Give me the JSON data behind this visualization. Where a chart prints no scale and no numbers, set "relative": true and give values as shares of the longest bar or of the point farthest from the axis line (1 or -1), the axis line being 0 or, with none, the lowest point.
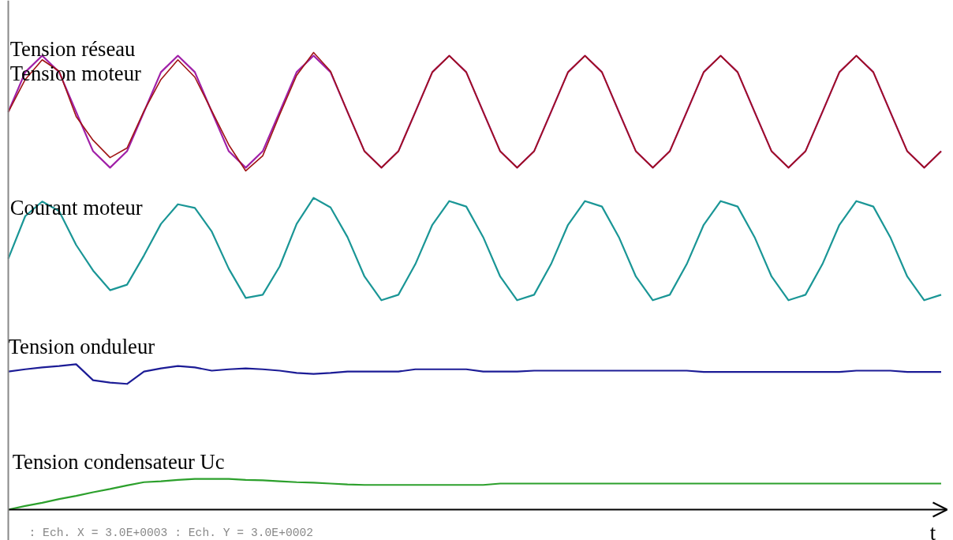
{
  "chart_data": {
    "type": "line",
    "relative": true,
    "xlabel": "t",
    "categories": [
      null,
      null,
      null,
      null,
      null,
      null,
      null,
      null,
      null,
      null,
      null,
      null,
      null,
      null,
      null,
      null,
      null,
      null,
      null,
      null,
      null,
      null,
      null,
      null,
      null,
      null,
      null,
      null,
      null,
      null,
      null,
      null,
      null,
      null,
      null,
      null,
      null,
      null,
      null,
      null,
      null,
      null,
      null,
      null,
      null,
      null,
      null,
      null,
      null,
      null,
      null,
      null,
      null,
      null,
      null,
      null
    ],
    "series": [
      {
        "name": "Tension réseau",
        "color": "#a01414",
        "values": [
          0.87,
          0.941,
          0.984,
          0.959,
          0.86,
          0.808,
          0.77,
          0.791,
          0.872,
          0.941,
          0.984,
          0.946,
          0.872,
          0.798,
          0.741,
          0.774,
          0.864,
          0.95,
          1.0,
          0.959,
          0.87,
          0.784,
          0.748,
          0.784,
          0.87,
          0.957,
          0.993,
          0.957,
          0.87,
          0.784,
          0.748,
          0.784,
          0.87,
          0.957,
          0.993,
          0.957,
          0.87,
          0.784,
          0.748,
          0.784,
          0.87,
          0.957,
          0.993,
          0.957,
          0.87,
          0.784,
          0.748,
          0.784,
          0.87,
          0.957,
          0.993,
          0.957,
          0.87,
          0.784,
          0.748,
          0.784
        ]
      },
      {
        "name": "Tension moteur",
        "color": "#a020a8",
        "values": [
          0.87,
          0.957,
          0.993,
          0.957,
          0.87,
          0.784,
          0.748,
          0.784,
          0.87,
          0.957,
          0.993,
          0.957,
          0.87,
          0.784,
          0.748,
          0.784,
          0.87,
          0.957,
          0.993,
          0.957,
          0.87,
          0.784,
          0.748,
          0.784,
          0.87,
          0.957,
          0.993,
          0.957,
          0.87,
          0.784,
          0.748,
          0.784,
          0.87,
          0.957,
          0.993,
          0.957,
          0.87,
          0.784,
          0.748,
          0.784,
          0.87,
          0.957,
          0.993,
          0.957,
          0.87,
          0.784,
          0.748,
          0.784,
          0.87,
          0.957,
          0.993,
          0.957,
          0.87,
          0.784,
          0.748,
          0.784
        ]
      },
      {
        "name": "Courant moteur",
        "color": "#1a9696",
        "values": [
          0.549,
          0.642,
          0.674,
          0.653,
          0.579,
          0.523,
          0.48,
          0.492,
          0.556,
          0.625,
          0.668,
          0.66,
          0.608,
          0.527,
          0.463,
          0.47,
          0.532,
          0.625,
          0.682,
          0.661,
          0.596,
          0.51,
          0.458,
          0.47,
          0.537,
          0.623,
          0.675,
          0.663,
          0.596,
          0.51,
          0.458,
          0.47,
          0.537,
          0.623,
          0.675,
          0.663,
          0.596,
          0.51,
          0.458,
          0.47,
          0.537,
          0.623,
          0.675,
          0.663,
          0.596,
          0.51,
          0.458,
          0.47,
          0.537,
          0.623,
          0.675,
          0.663,
          0.596,
          0.51,
          0.458,
          0.47
        ]
      },
      {
        "name": "Tension onduleur",
        "color": "#1c1c96",
        "values": [
          0.302,
          0.307,
          0.311,
          0.314,
          0.318,
          0.283,
          0.278,
          0.275,
          0.302,
          0.309,
          0.314,
          0.311,
          0.304,
          0.307,
          0.309,
          0.307,
          0.304,
          0.299,
          0.297,
          0.299,
          0.302,
          0.302,
          0.302,
          0.302,
          0.307,
          0.307,
          0.307,
          0.307,
          0.302,
          0.302,
          0.302,
          0.304,
          0.304,
          0.304,
          0.304,
          0.304,
          0.304,
          0.304,
          0.304,
          0.304,
          0.304,
          0.301,
          0.301,
          0.301,
          0.301,
          0.301,
          0.301,
          0.301,
          0.301,
          0.301,
          0.304,
          0.304,
          0.304,
          0.301,
          0.301,
          0.301
        ]
      },
      {
        "name": "Tension condensateur Uc",
        "color": "#2ca02c",
        "values": [
          0,
          0.008,
          0.015,
          0.023,
          0.03,
          0.038,
          0.045,
          0.053,
          0.06,
          0.062,
          0.065,
          0.067,
          0.067,
          0.067,
          0.065,
          0.064,
          0.062,
          0.06,
          0.059,
          0.057,
          0.055,
          0.054,
          0.054,
          0.054,
          0.054,
          0.054,
          0.054,
          0.054,
          0.054,
          0.057,
          0.057,
          0.057,
          0.057,
          0.057,
          0.057,
          0.057,
          0.057,
          0.057,
          0.057,
          0.057,
          0.057,
          0.057,
          0.057,
          0.057,
          0.057,
          0.057,
          0.057,
          0.057,
          0.057,
          0.057,
          0.057,
          0.057,
          0.057,
          0.057,
          0.057,
          0.057
        ]
      }
    ],
    "annotations": [
      ": Ech. X = 3.0E+0003 : Ech. Y = 3.0E+0002"
    ]
  }
}
